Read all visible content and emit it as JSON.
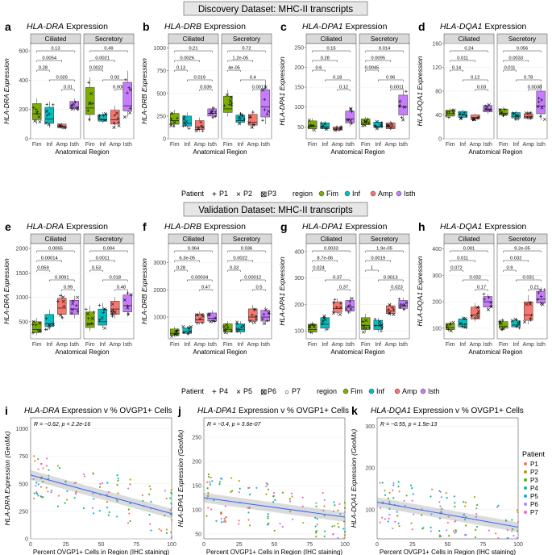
{
  "section_discovery": "Discovery Dataset: MHC-II transcripts",
  "section_validation": "Validation Dataset: MHC-II transcripts",
  "panel_letters": [
    "a",
    "b",
    "c",
    "d",
    "e",
    "f",
    "g",
    "h",
    "i",
    "j",
    "k"
  ],
  "facets": [
    "Ciliated",
    "Secretory"
  ],
  "regions": [
    "Fim",
    "Inf",
    "Amp",
    "Isth"
  ],
  "region_colors": {
    "Fim": "#7cae00",
    "Inf": "#00bfc4",
    "Amp": "#f8766d",
    "Isth": "#c77cff"
  },
  "x_title": "Anatomical Region",
  "expr_suffix": " Expression",
  "legend_discovery": {
    "patient_title": "Patient",
    "patients": [
      {
        "sym": "+",
        "label": "P1"
      },
      {
        "sym": "×",
        "label": "P2"
      },
      {
        "sym": "⊠",
        "label": "P3"
      }
    ],
    "region_title": "region"
  },
  "legend_validation": {
    "patient_title": "Patient",
    "patients": [
      {
        "sym": "+",
        "label": "P4"
      },
      {
        "sym": "×",
        "label": "P5"
      },
      {
        "sym": "⊠",
        "label": "P6"
      },
      {
        "sym": "○",
        "label": "P7"
      }
    ],
    "region_title": "region"
  },
  "scatter_legend": {
    "title": "Patient",
    "items": [
      {
        "label": "P1",
        "color": "#f8766d"
      },
      {
        "label": "P2",
        "color": "#c49a00"
      },
      {
        "label": "P3",
        "color": "#53b400"
      },
      {
        "label": "P4",
        "color": "#00c094"
      },
      {
        "label": "P5",
        "color": "#00b6eb"
      },
      {
        "label": "P6",
        "color": "#a58aff"
      },
      {
        "label": "P7",
        "color": "#fb61d7"
      }
    ]
  },
  "chart_data": [
    {
      "id": "a",
      "type": "box",
      "gene": "HLA-DRA",
      "ylabel": "HLA-DRA Expression",
      "ylim": [
        0,
        650
      ],
      "yticks": [
        0,
        200,
        400,
        600
      ],
      "pvals": [
        [
          "0.13",
          "0.49"
        ],
        [
          "0.0054",
          "0.0021"
        ],
        [
          "0.28",
          "0.0022"
        ],
        [
          "0.026",
          "0.92"
        ],
        [
          "0.01",
          "0.00026"
        ]
      ],
      "groups": [
        [
          [
            130,
            170,
            210,
            240
          ],
          [
            105,
            135,
            185,
            215
          ],
          [
            75,
            85,
            95,
            100
          ],
          [
            205,
            215,
            240,
            255
          ]
        ],
        [
          [
            165,
            210,
            290,
            350
          ],
          [
            120,
            130,
            155,
            165
          ],
          [
            100,
            130,
            165,
            195
          ],
          [
            190,
            225,
            300,
            385
          ]
        ]
      ]
    },
    {
      "id": "b",
      "type": "box",
      "gene": "HLA-DRB",
      "ylabel": "HLA-DRB Expression",
      "ylim": [
        0,
        1050
      ],
      "yticks": [
        0,
        250,
        500,
        750,
        1000
      ],
      "pvals": [
        [
          "0.21",
          "0.72"
        ],
        [
          "0.0026",
          "1.2e-05"
        ],
        [
          "0.13",
          "4e-05"
        ],
        [
          "0.019",
          "0.4"
        ],
        [
          "0.036",
          "0.0012"
        ]
      ],
      "groups": [
        [
          [
            160,
            200,
            250,
            280
          ],
          [
            140,
            170,
            210,
            250
          ],
          [
            100,
            130,
            160,
            200
          ],
          [
            250,
            280,
            310,
            330
          ]
        ],
        [
          [
            290,
            330,
            400,
            470
          ],
          [
            180,
            200,
            230,
            260
          ],
          [
            150,
            180,
            230,
            270
          ],
          [
            240,
            350,
            440,
            540
          ]
        ]
      ]
    },
    {
      "id": "c",
      "type": "box",
      "gene": "HLA-DPA1",
      "ylabel": "HLA-DPA1 Expression",
      "ylim": [
        20,
        260
      ],
      "yticks": [
        50,
        100,
        150,
        200,
        250
      ],
      "pvals": [
        [
          "0.15",
          "0.014"
        ],
        [
          "0.28",
          "0.0095"
        ],
        [
          "0.6",
          "0.0045"
        ],
        [
          "0.18",
          "0.96"
        ],
        [
          "0.12",
          "0.0011"
        ]
      ],
      "groups": [
        [
          [
            45,
            52,
            58,
            65
          ],
          [
            45,
            50,
            55,
            60
          ],
          [
            42,
            45,
            47,
            50
          ],
          [
            60,
            70,
            82,
            90
          ]
        ],
        [
          [
            55,
            60,
            65,
            70
          ],
          [
            48,
            52,
            56,
            62
          ],
          [
            45,
            50,
            54,
            60
          ],
          [
            80,
            100,
            115,
            130
          ]
        ]
      ]
    },
    {
      "id": "d",
      "type": "box",
      "gene": "HLA-DQA1",
      "ylabel": "HLA-DQA1 Expression",
      "ylim": [
        0,
        160
      ],
      "yticks": [
        0,
        40,
        80,
        120,
        160
      ],
      "pvals": [
        [
          "0.24",
          "0.056"
        ],
        [
          "0.011",
          "0.0033"
        ],
        [
          "0.14",
          "0.011"
        ],
        [
          "0.12",
          "0.78"
        ],
        [
          "0.03",
          "0.0038"
        ]
      ],
      "groups": [
        [
          [
            38,
            42,
            45,
            48
          ],
          [
            36,
            40,
            43,
            46
          ],
          [
            33,
            36,
            38,
            40
          ],
          [
            45,
            48,
            52,
            56
          ]
        ],
        [
          [
            40,
            43,
            47,
            50
          ],
          [
            35,
            38,
            41,
            44
          ],
          [
            34,
            37,
            39,
            42
          ],
          [
            42,
            55,
            70,
            80
          ]
        ]
      ]
    },
    {
      "id": "e",
      "type": "box",
      "gene": "HLA-DRA",
      "ylabel": "HLA-DRA Expression",
      "ylim": [
        150,
        2100
      ],
      "yticks": [
        500,
        1000,
        1500,
        2000
      ],
      "pvals": [
        [
          "0.0065",
          "0.004"
        ],
        [
          "0.00014",
          "0.0011"
        ],
        [
          "0.059",
          "0.53"
        ],
        [
          "0.0091",
          "0.018"
        ],
        [
          "0.99",
          "0.48"
        ]
      ],
      "groups": [
        [
          [
            280,
            340,
            420,
            500
          ],
          [
            400,
            460,
            540,
            650
          ],
          [
            650,
            780,
            880,
            980
          ],
          [
            650,
            760,
            860,
            940
          ]
        ],
        [
          [
            380,
            450,
            560,
            700
          ],
          [
            430,
            500,
            600,
            760
          ],
          [
            650,
            760,
            850,
            920
          ],
          [
            700,
            830,
            950,
            1050
          ]
        ]
      ]
    },
    {
      "id": "f",
      "type": "box",
      "gene": "HLA-DRB",
      "ylabel": "HLA-DRB Expression",
      "ylim": [
        200,
        3700
      ],
      "yticks": [
        1000,
        2000,
        3000
      ],
      "pvals": [
        [
          "0.064",
          "0.036"
        ],
        [
          "6.3e-05",
          "0.0022"
        ],
        [
          "0.28",
          "0.33"
        ],
        [
          "0.00034",
          "0.00012"
        ],
        [
          "0.47",
          "0.5"
        ]
      ],
      "groups": [
        [
          [
            330,
            400,
            480,
            560
          ],
          [
            400,
            460,
            540,
            600
          ],
          [
            800,
            900,
            1000,
            1100
          ],
          [
            850,
            950,
            1050,
            1150
          ]
        ],
        [
          [
            450,
            550,
            650,
            750
          ],
          [
            450,
            550,
            650,
            750
          ],
          [
            850,
            1000,
            1150,
            1300
          ],
          [
            850,
            1000,
            1150,
            1250
          ]
        ]
      ]
    },
    {
      "id": "g",
      "type": "box",
      "gene": "HLA-DPA1",
      "ylabel": "HLA-DPA1 Expression",
      "ylim": [
        70,
        430
      ],
      "yticks": [
        100,
        200,
        300,
        400
      ],
      "pvals": [
        [
          "0.0033",
          "1.9e-05"
        ],
        [
          "8.7e-06",
          "0.0019"
        ],
        [
          "0.024",
          "1"
        ],
        [
          "0.37",
          "0.0013"
        ],
        [
          "0.37",
          "0.023"
        ]
      ],
      "groups": [
        [
          [
            95,
            105,
            115,
            125
          ],
          [
            110,
            125,
            140,
            150
          ],
          [
            170,
            185,
            200,
            210
          ],
          [
            175,
            190,
            200,
            215
          ]
        ],
        [
          [
            105,
            120,
            135,
            150
          ],
          [
            105,
            120,
            130,
            140
          ],
          [
            165,
            175,
            185,
            195
          ],
          [
            185,
            195,
            205,
            215
          ]
        ]
      ]
    },
    {
      "id": "h",
      "type": "box",
      "gene": "HLA-DQA1",
      "ylabel": "HLA-DQA1 Expression",
      "ylim": [
        60,
        420
      ],
      "yticks": [
        100,
        200,
        300,
        400
      ],
      "pvals": [
        [
          "0.001",
          "9.2e-05"
        ],
        [
          "0.011",
          "0.032"
        ],
        [
          "0.072",
          "0.9"
        ],
        [
          "0.032",
          "0.031"
        ],
        [
          "0.17",
          "0.21"
        ]
      ],
      "groups": [
        [
          [
            95,
            102,
            110,
            118
          ],
          [
            105,
            115,
            125,
            135
          ],
          [
            135,
            150,
            160,
            180
          ],
          [
            180,
            200,
            210,
            220
          ]
        ],
        [
          [
            100,
            108,
            115,
            125
          ],
          [
            105,
            112,
            118,
            128
          ],
          [
            130,
            150,
            170,
            200
          ],
          [
            195,
            210,
            225,
            240
          ]
        ]
      ]
    },
    {
      "id": "i",
      "type": "scatter",
      "title_gene": "HLA-DRA",
      "title_rest": " Expression v % OVGP1+ Cells",
      "stat": "R = −0.62, p < 2.2e-16",
      "ylabel": "HLA-DRA Expression (GeoMx)",
      "xlabel": "Percent OVGP1+ Cells in Region (IHC staining)",
      "xlim": [
        0,
        100
      ],
      "ylim": [
        0,
        1100
      ],
      "yticks": [
        0,
        250,
        500,
        750,
        1000
      ],
      "xticks": [
        0,
        25,
        50,
        75,
        100
      ],
      "fit": [
        [
          0,
          580
        ],
        [
          100,
          230
        ]
      ]
    },
    {
      "id": "j",
      "type": "scatter",
      "title_gene": "HLA-DPA1",
      "title_rest": " Expression v % OVGP1+ Cells",
      "stat": "R = −0.4, p = 3.6e-07",
      "ylabel": "HLA-DPA1 Expression (GeoMx)",
      "xlabel": "Percent OVGP1+ Cells in Region (IHC staining)",
      "xlim": [
        0,
        100
      ],
      "ylim": [
        40,
        290
      ],
      "yticks": [
        50,
        100,
        150,
        200,
        250
      ],
      "xticks": [
        0,
        25,
        50,
        75,
        100
      ],
      "fit": [
        [
          0,
          125
        ],
        [
          100,
          85
        ]
      ]
    },
    {
      "id": "k",
      "type": "scatter",
      "title_gene": "HLA-DQA1",
      "title_rest": " Expression v % OVGP1+ Cells",
      "stat": "R = −0.55, p = 1.5e-13",
      "ylabel": "HLA-DQA1 Expression (GeoMx)",
      "xlabel": "Percent OVGP1+ Cells in Region (IHC staining)",
      "xlim": [
        0,
        100
      ],
      "ylim": [
        30,
        320
      ],
      "yticks": [
        100,
        200,
        300
      ],
      "xticks": [
        0,
        25,
        50,
        75,
        100
      ],
      "fit": [
        [
          0,
          118
        ],
        [
          100,
          58
        ]
      ]
    }
  ]
}
